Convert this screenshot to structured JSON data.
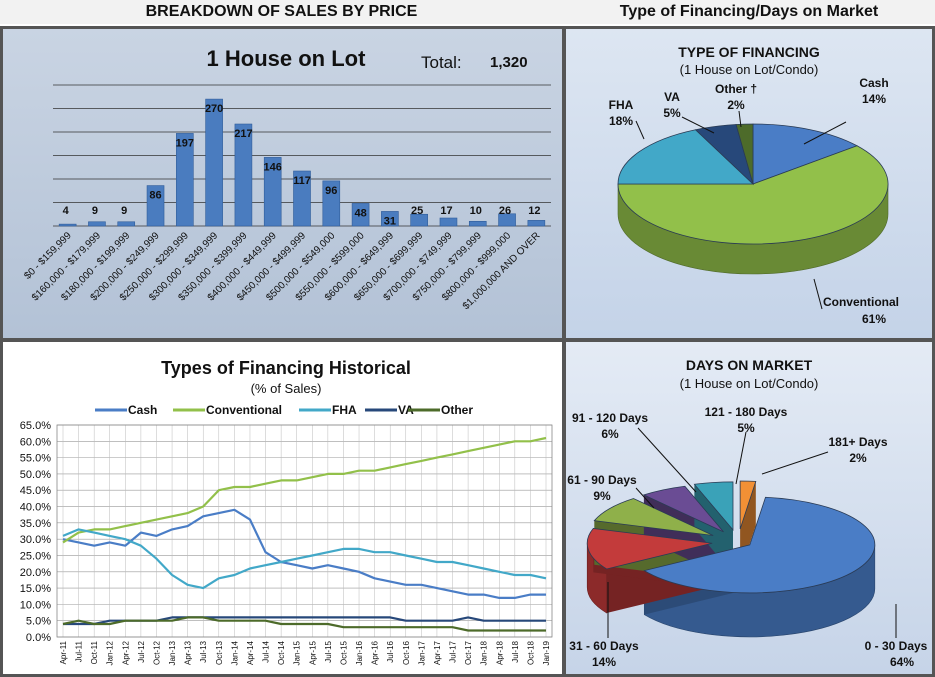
{
  "headers": {
    "left": "BREAKDOWN OF SALES BY PRICE",
    "right": "Type of Financing/Days on Market"
  },
  "colors": {
    "bar": "#4a7cbf",
    "cash": "#4a7dc6",
    "conventional": "#92c04a",
    "fha": "#42a8c8",
    "va": "#27487a",
    "other": "#4d6b2a",
    "red": "#c33b3b",
    "green": "#8fb04a",
    "purple": "#6a4c94",
    "teal": "#3aa2b8",
    "orange": "#f29035"
  },
  "chart_data": [
    {
      "type": "bar",
      "title": "1 House on Lot",
      "total_label": "Total:",
      "total_value": "1,320",
      "categories": [
        "$0 - $159,999",
        "$160,000 - $179,999",
        "$180,000 - $199,999",
        "$200,000 - $249,999",
        "$250,000 - $299,999",
        "$300,000 - $349,999",
        "$350,000 - $399,999",
        "$400,000 - $449,999",
        "$450,000 - $499,999",
        "$500,000 - $549,000",
        "$550,000 - $599,000",
        "$600,000 - $649,999",
        "$650,000 - $699,999",
        "$700,000 - $749,999",
        "$750,000 - $799,999",
        "$800,000 - $999,000",
        "$1,000,000 AND OVER"
      ],
      "values": [
        4,
        9,
        9,
        86,
        197,
        270,
        217,
        146,
        117,
        96,
        48,
        31,
        25,
        17,
        10,
        26,
        12
      ],
      "ylim": [
        0,
        300
      ],
      "grid": true
    },
    {
      "type": "pie",
      "title": "TYPE OF FINANCING",
      "subtitle": "(1 House on Lot/Condo)",
      "slices": [
        {
          "label": "Cash",
          "value": 14,
          "pct": "14%"
        },
        {
          "label": "Conventional",
          "value": 61,
          "pct": "61%"
        },
        {
          "label": "FHA",
          "value": 18,
          "pct": "18%"
        },
        {
          "label": "VA",
          "value": 5,
          "pct": "5%"
        },
        {
          "label": "Other †",
          "value": 2,
          "pct": "2%"
        }
      ]
    },
    {
      "type": "line",
      "title": "Types of Financing Historical",
      "subtitle": "(% of Sales)",
      "yticks": [
        "0.0%",
        "5.0%",
        "10.0%",
        "15.0%",
        "20.0%",
        "25.0%",
        "30.0%",
        "35.0%",
        "40.0%",
        "45.0%",
        "50.0%",
        "55.0%",
        "60.0%",
        "65.0%"
      ],
      "ylim": [
        0,
        65
      ],
      "xticks": [
        "Apr-11",
        "Jul-11",
        "Oct-11",
        "Jan-12",
        "Apr-12",
        "Jul-12",
        "Oct-12",
        "Jan-13",
        "Apr-13",
        "Jul-13",
        "Oct-13",
        "Jan-14",
        "Apr-14",
        "Jul-14",
        "Oct-14",
        "Jan-15",
        "Apr-15",
        "Jul-15",
        "Oct-15",
        "Jan-16",
        "Apr-16",
        "Jul-16",
        "Oct-16",
        "Jan-17",
        "Apr-17",
        "Jul-17",
        "Oct-17",
        "Jan-18",
        "Apr-18",
        "Jul-18",
        "Oct-18",
        "Jan-19"
      ],
      "legend_placement": "top",
      "series": [
        {
          "name": "Cash",
          "values": [
            30,
            29,
            28,
            29,
            28,
            32,
            31,
            33,
            34,
            37,
            38,
            39,
            36,
            26,
            23,
            22,
            21,
            22,
            21,
            20,
            18,
            17,
            16,
            16,
            15,
            14,
            13,
            13,
            12,
            12,
            13,
            13
          ]
        },
        {
          "name": "Conventional",
          "values": [
            29,
            32,
            33,
            33,
            34,
            35,
            36,
            37,
            38,
            40,
            45,
            46,
            46,
            47,
            48,
            48,
            49,
            50,
            50,
            51,
            51,
            52,
            53,
            54,
            55,
            56,
            57,
            58,
            59,
            60,
            60,
            61
          ]
        },
        {
          "name": "FHA",
          "values": [
            31,
            33,
            32,
            31,
            30,
            28,
            24,
            19,
            16,
            15,
            18,
            19,
            21,
            22,
            23,
            24,
            25,
            26,
            27,
            27,
            26,
            26,
            25,
            24,
            23,
            23,
            22,
            21,
            20,
            19,
            19,
            18
          ]
        },
        {
          "name": "VA",
          "values": [
            4,
            4,
            4,
            5,
            5,
            5,
            5,
            6,
            6,
            6,
            6,
            6,
            6,
            6,
            6,
            6,
            6,
            6,
            6,
            6,
            6,
            6,
            5,
            5,
            5,
            5,
            6,
            5,
            5,
            5,
            5,
            5
          ]
        },
        {
          "name": "Other",
          "values": [
            4,
            5,
            4,
            4,
            5,
            5,
            5,
            5,
            6,
            6,
            5,
            5,
            5,
            5,
            4,
            4,
            4,
            4,
            3,
            3,
            3,
            3,
            3,
            3,
            3,
            3,
            2,
            2,
            2,
            2,
            2,
            2
          ]
        }
      ]
    },
    {
      "type": "pie",
      "title": "DAYS ON MARKET",
      "subtitle": "(1 House on Lot/Condo)",
      "slices": [
        {
          "label": "0 - 30 Days",
          "value": 64,
          "pct": "64%"
        },
        {
          "label": "31 - 60 Days",
          "value": 14,
          "pct": "14%"
        },
        {
          "label": "61 - 90 Days",
          "value": 9,
          "pct": "9%"
        },
        {
          "label": "91 - 120 Days",
          "value": 6,
          "pct": "6%"
        },
        {
          "label": "121 - 180 Days",
          "value": 5,
          "pct": "5%"
        },
        {
          "label": "181+ Days",
          "value": 2,
          "pct": "2%"
        }
      ]
    }
  ]
}
